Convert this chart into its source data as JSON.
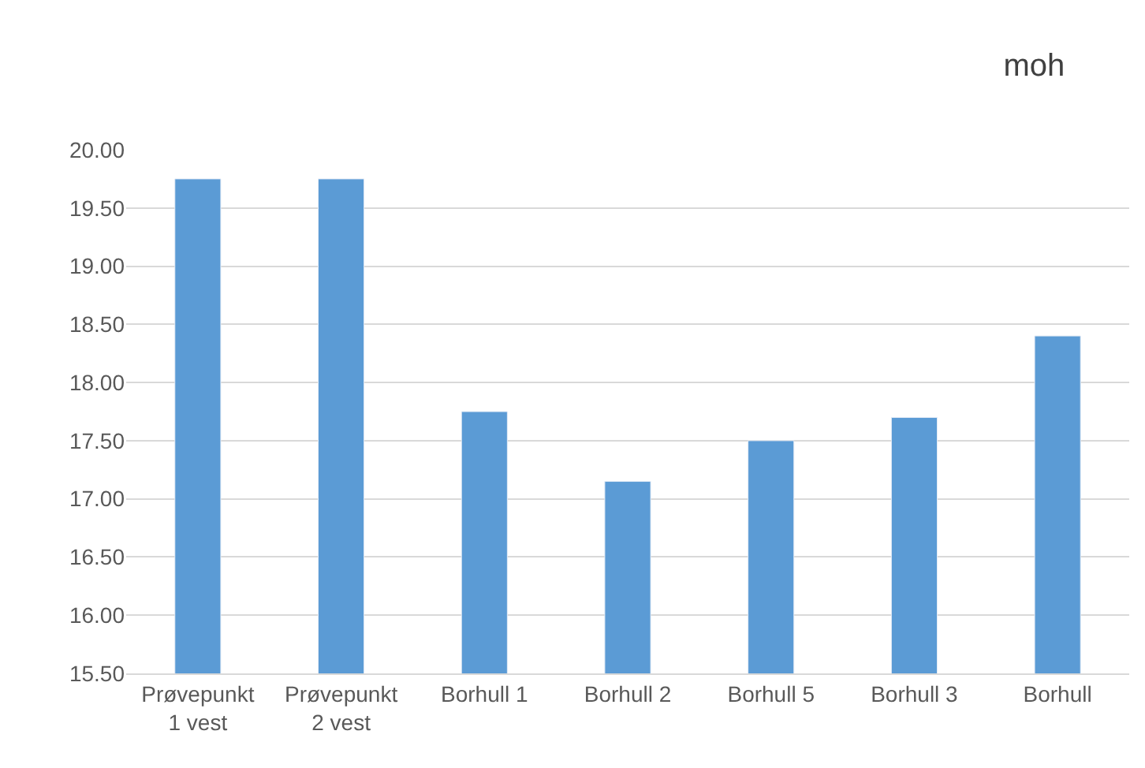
{
  "chart_data": {
    "type": "bar",
    "title": "moh",
    "categories": [
      "Prøvepunkt\n1 vest",
      "Prøvepunkt\n2 vest",
      "Borhull 1",
      "Borhull 2",
      "Borhull 5",
      "Borhull 3",
      "Borhull"
    ],
    "values": [
      19.75,
      19.75,
      17.75,
      17.15,
      17.5,
      17.7,
      18.4
    ],
    "color": "#5b9bd5",
    "ylim": [
      15.5,
      20.0
    ],
    "yticks": [
      {
        "value": 15.5,
        "label": "15.50"
      },
      {
        "value": 16.0,
        "label": "16.00"
      },
      {
        "value": 16.5,
        "label": "16.50"
      },
      {
        "value": 17.0,
        "label": "17.00"
      },
      {
        "value": 17.5,
        "label": "17.50"
      },
      {
        "value": 18.0,
        "label": "18.00"
      },
      {
        "value": 18.5,
        "label": "18.50"
      },
      {
        "value": 19.0,
        "label": "19.00"
      },
      {
        "value": 19.5,
        "label": "19.50"
      },
      {
        "value": 20.0,
        "label": "20.00"
      }
    ],
    "grid": "y"
  }
}
